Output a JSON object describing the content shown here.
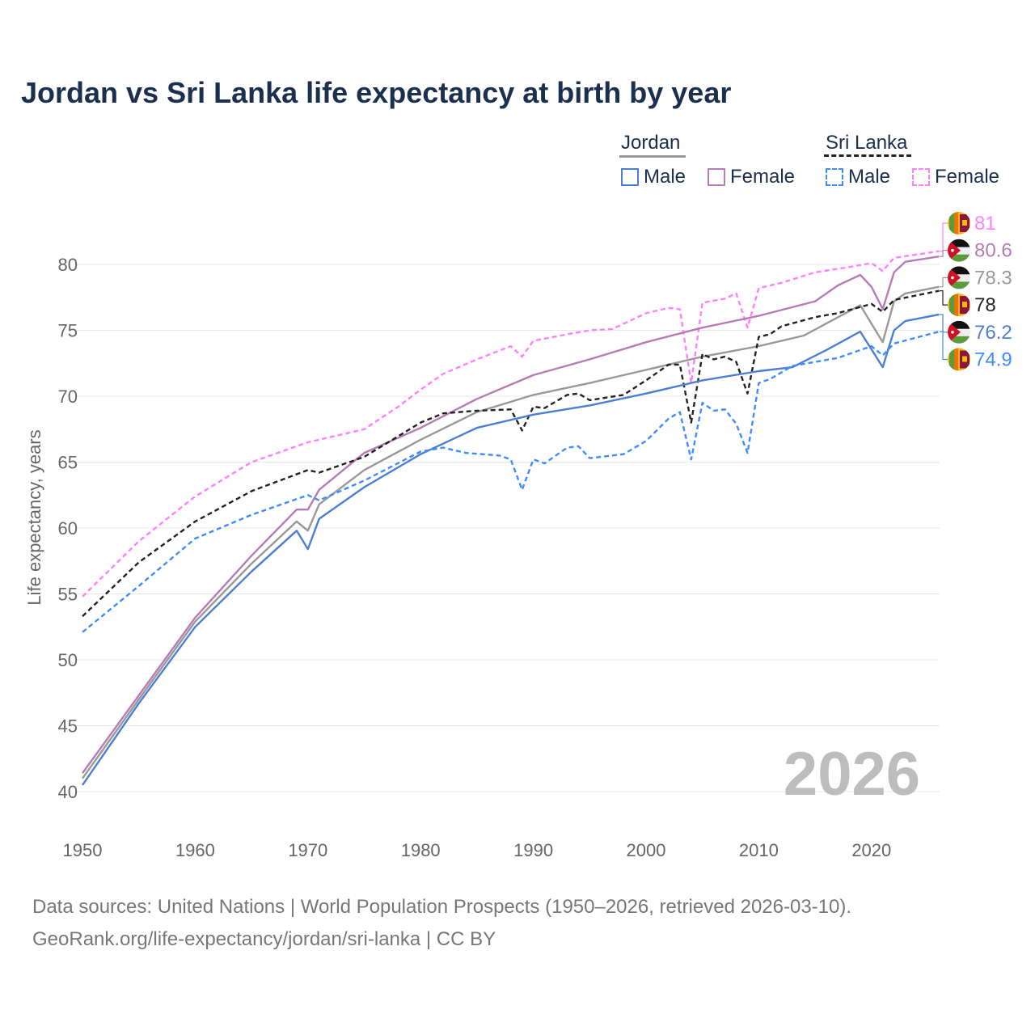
{
  "title": "Jordan vs Sri Lanka life expectancy at birth by year",
  "legend": {
    "groups": [
      {
        "name": "Jordan",
        "color": "#999999",
        "dashed": false,
        "items": [
          {
            "label": "Male",
            "color": "#4c7fd1"
          },
          {
            "label": "Female",
            "color": "#b77bb5"
          }
        ]
      },
      {
        "name": "Sri Lanka",
        "color": "#222222",
        "dashed": true,
        "items": [
          {
            "label": "Male",
            "color": "#3f8cff"
          },
          {
            "label": "Female",
            "color": "#ff80ff"
          }
        ]
      }
    ]
  },
  "year_watermark": "2026",
  "sources": {
    "line1": "Data sources: United Nations | World Population Prospects (1950–2026, retrieved 2026-03-10).",
    "line2": "GeoRank.org/life-expectancy/jordan/sri-lanka | CC BY"
  },
  "chart_data": {
    "type": "line",
    "title": "Jordan vs Sri Lanka life expectancy at birth by year",
    "xlabel": "",
    "ylabel": "Life expectancy, years",
    "xlim": [
      1950,
      2026
    ],
    "ylim": [
      38,
      83
    ],
    "xticks": [
      1950,
      1960,
      1970,
      1980,
      1990,
      2000,
      2010,
      2020
    ],
    "yticks": [
      40,
      45,
      50,
      55,
      60,
      65,
      70,
      75,
      80
    ],
    "grid": true,
    "legend_position": "top-right",
    "series": [
      {
        "name": "Sri Lanka Female",
        "country": "Sri Lanka",
        "color": "#ff80ff",
        "dashed": true,
        "end_label": "81",
        "points": [
          [
            1950,
            54.8
          ],
          [
            1955,
            59.0
          ],
          [
            1960,
            62.4
          ],
          [
            1965,
            65.0
          ],
          [
            1970,
            66.5
          ],
          [
            1972,
            66.9
          ],
          [
            1975,
            67.5
          ],
          [
            1978,
            69.2
          ],
          [
            1980,
            70.5
          ],
          [
            1982,
            71.7
          ],
          [
            1985,
            72.8
          ],
          [
            1988,
            73.8
          ],
          [
            1989,
            73.0
          ],
          [
            1990,
            74.2
          ],
          [
            1993,
            74.7
          ],
          [
            1995,
            75.0
          ],
          [
            1997,
            75.1
          ],
          [
            2000,
            76.3
          ],
          [
            2002,
            76.7
          ],
          [
            2003,
            76.6
          ],
          [
            2004,
            71.0
          ],
          [
            2005,
            77.1
          ],
          [
            2007,
            77.4
          ],
          [
            2008,
            77.8
          ],
          [
            2009,
            75.2
          ],
          [
            2010,
            78.2
          ],
          [
            2012,
            78.6
          ],
          [
            2015,
            79.4
          ],
          [
            2018,
            79.8
          ],
          [
            2020,
            80.1
          ],
          [
            2021,
            79.5
          ],
          [
            2022,
            80.5
          ],
          [
            2026,
            81.0
          ]
        ]
      },
      {
        "name": "Jordan Female",
        "country": "Jordan",
        "color": "#b77bb5",
        "dashed": false,
        "end_label": "80.6",
        "points": [
          [
            1950,
            41.4
          ],
          [
            1955,
            47.3
          ],
          [
            1960,
            53.2
          ],
          [
            1965,
            57.9
          ],
          [
            1969,
            61.4
          ],
          [
            1970,
            61.4
          ],
          [
            1971,
            62.9
          ],
          [
            1975,
            65.7
          ],
          [
            1980,
            67.6
          ],
          [
            1985,
            69.8
          ],
          [
            1990,
            71.6
          ],
          [
            1995,
            72.8
          ],
          [
            2000,
            74.1
          ],
          [
            2005,
            75.2
          ],
          [
            2010,
            76.1
          ],
          [
            2015,
            77.2
          ],
          [
            2017,
            78.4
          ],
          [
            2019,
            79.2
          ],
          [
            2020,
            78.3
          ],
          [
            2021,
            76.6
          ],
          [
            2022,
            79.4
          ],
          [
            2023,
            80.2
          ],
          [
            2026,
            80.6
          ]
        ]
      },
      {
        "name": "Jordan",
        "country": "Jordan",
        "color": "#999999",
        "dashed": false,
        "end_label": "78.3",
        "points": [
          [
            1950,
            41.0
          ],
          [
            1955,
            47.0
          ],
          [
            1960,
            52.9
          ],
          [
            1965,
            57.3
          ],
          [
            1969,
            60.5
          ],
          [
            1970,
            59.8
          ],
          [
            1971,
            61.8
          ],
          [
            1975,
            64.4
          ],
          [
            1980,
            66.7
          ],
          [
            1985,
            68.8
          ],
          [
            1990,
            70.1
          ],
          [
            1995,
            71.0
          ],
          [
            2000,
            72.0
          ],
          [
            2005,
            73.0
          ],
          [
            2010,
            73.8
          ],
          [
            2014,
            74.6
          ],
          [
            2019,
            76.9
          ],
          [
            2021,
            74.1
          ],
          [
            2022,
            77.2
          ],
          [
            2023,
            77.8
          ],
          [
            2026,
            78.3
          ]
        ]
      },
      {
        "name": "Sri Lanka",
        "country": "Sri Lanka",
        "color": "#222222",
        "dashed": true,
        "end_label": "78",
        "points": [
          [
            1950,
            53.3
          ],
          [
            1955,
            57.4
          ],
          [
            1960,
            60.5
          ],
          [
            1965,
            62.8
          ],
          [
            1970,
            64.4
          ],
          [
            1971,
            64.2
          ],
          [
            1975,
            65.4
          ],
          [
            1980,
            68.0
          ],
          [
            1982,
            68.7
          ],
          [
            1985,
            68.9
          ],
          [
            1988,
            69.0
          ],
          [
            1989,
            67.4
          ],
          [
            1990,
            69.2
          ],
          [
            1991,
            69.1
          ],
          [
            1993,
            70.1
          ],
          [
            1994,
            70.2
          ],
          [
            1995,
            69.7
          ],
          [
            1998,
            70.1
          ],
          [
            2000,
            71.2
          ],
          [
            2002,
            72.4
          ],
          [
            2003,
            72.4
          ],
          [
            2004,
            68.0
          ],
          [
            2005,
            73.2
          ],
          [
            2006,
            72.8
          ],
          [
            2007,
            73.0
          ],
          [
            2008,
            72.6
          ],
          [
            2009,
            70.2
          ],
          [
            2010,
            74.5
          ],
          [
            2011,
            74.7
          ],
          [
            2012,
            75.3
          ],
          [
            2015,
            76.0
          ],
          [
            2017,
            76.3
          ],
          [
            2020,
            77.0
          ],
          [
            2021,
            76.4
          ],
          [
            2022,
            77.3
          ],
          [
            2026,
            78.0
          ]
        ]
      },
      {
        "name": "Jordan Male",
        "country": "Jordan",
        "color": "#4c7fd1",
        "dashed": false,
        "end_label": "76.2",
        "points": [
          [
            1950,
            40.5
          ],
          [
            1955,
            46.7
          ],
          [
            1960,
            52.5
          ],
          [
            1965,
            56.7
          ],
          [
            1969,
            59.8
          ],
          [
            1970,
            58.4
          ],
          [
            1971,
            60.7
          ],
          [
            1975,
            63.1
          ],
          [
            1980,
            65.6
          ],
          [
            1985,
            67.6
          ],
          [
            1990,
            68.6
          ],
          [
            1995,
            69.3
          ],
          [
            2000,
            70.2
          ],
          [
            2005,
            71.2
          ],
          [
            2010,
            71.9
          ],
          [
            2013,
            72.2
          ],
          [
            2016,
            73.5
          ],
          [
            2019,
            74.9
          ],
          [
            2021,
            72.2
          ],
          [
            2022,
            75.0
          ],
          [
            2023,
            75.7
          ],
          [
            2026,
            76.2
          ]
        ]
      },
      {
        "name": "Sri Lanka Male",
        "country": "Sri Lanka",
        "color": "#3f8cff",
        "dashed": true,
        "end_label": "74.9",
        "points": [
          [
            1950,
            52.1
          ],
          [
            1955,
            55.6
          ],
          [
            1960,
            59.2
          ],
          [
            1965,
            61.0
          ],
          [
            1970,
            62.5
          ],
          [
            1971,
            62.1
          ],
          [
            1975,
            63.6
          ],
          [
            1980,
            65.8
          ],
          [
            1982,
            66.1
          ],
          [
            1984,
            65.7
          ],
          [
            1987,
            65.5
          ],
          [
            1988,
            65.2
          ],
          [
            1989,
            62.9
          ],
          [
            1990,
            65.2
          ],
          [
            1991,
            64.9
          ],
          [
            1993,
            66.1
          ],
          [
            1994,
            66.2
          ],
          [
            1995,
            65.3
          ],
          [
            1998,
            65.6
          ],
          [
            2000,
            66.6
          ],
          [
            2002,
            68.3
          ],
          [
            2003,
            68.8
          ],
          [
            2004,
            65.2
          ],
          [
            2005,
            69.5
          ],
          [
            2006,
            68.9
          ],
          [
            2007,
            69.0
          ],
          [
            2008,
            67.9
          ],
          [
            2009,
            65.7
          ],
          [
            2010,
            71.0
          ],
          [
            2011,
            71.3
          ],
          [
            2013,
            72.3
          ],
          [
            2015,
            72.6
          ],
          [
            2017,
            72.9
          ],
          [
            2020,
            73.8
          ],
          [
            2021,
            73.1
          ],
          [
            2022,
            74.0
          ],
          [
            2026,
            74.9
          ]
        ]
      }
    ]
  }
}
